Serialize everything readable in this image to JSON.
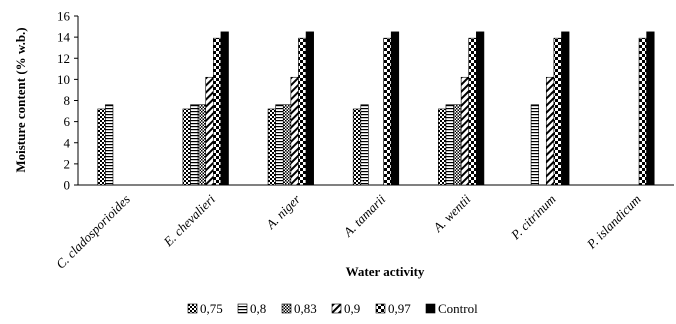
{
  "chart_data": {
    "type": "bar",
    "title": "",
    "xlabel": "Water activity",
    "ylabel": "Moisture content (% w.b.)",
    "ylim": [
      0,
      16
    ],
    "yticks": [
      0,
      2,
      4,
      6,
      8,
      10,
      12,
      14,
      16
    ],
    "grid": false,
    "legend_position": "bottom",
    "categories": [
      "C. cladosporioides",
      "E. chevalieri",
      "A. niger",
      "A. tamarii",
      "A. wentii",
      "P. citrinum",
      "P. islandicum"
    ],
    "series": [
      {
        "name": "0,75",
        "pattern": "checker",
        "values": [
          7.2,
          7.2,
          7.2,
          7.2,
          7.2,
          null,
          null
        ]
      },
      {
        "name": "0,8",
        "pattern": "horizontal",
        "values": [
          7.6,
          7.6,
          7.6,
          7.6,
          7.6,
          7.6,
          null
        ]
      },
      {
        "name": "0,83",
        "pattern": "dense-checker",
        "values": [
          null,
          7.6,
          7.6,
          null,
          7.6,
          null,
          null
        ]
      },
      {
        "name": "0,9",
        "pattern": "diagonal",
        "values": [
          null,
          10.2,
          10.2,
          null,
          10.2,
          10.2,
          null
        ]
      },
      {
        "name": "0,97",
        "pattern": "big-checker",
        "values": [
          null,
          13.9,
          13.9,
          13.9,
          13.9,
          13.9,
          13.9
        ]
      },
      {
        "name": "Control",
        "pattern": "solid",
        "values": [
          null,
          14.5,
          14.5,
          14.5,
          14.5,
          14.5,
          14.5
        ]
      }
    ]
  }
}
